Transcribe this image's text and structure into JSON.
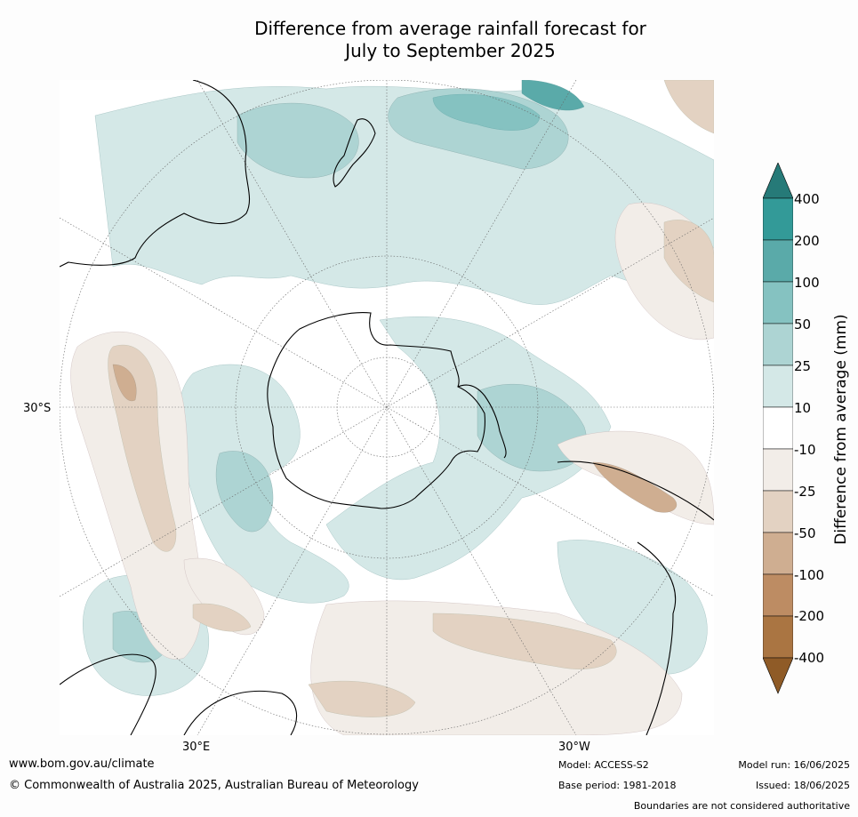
{
  "title": {
    "line1": "Difference from average rainfall forecast for",
    "line2": "July to September 2025"
  },
  "map": {
    "projection": "south-polar-stereographic",
    "latitude_label": "30°S",
    "longitude_labels": [
      "30°E",
      "30°W"
    ]
  },
  "colorbar": {
    "title": "Difference from average (mm)",
    "ticks": [
      "400",
      "200",
      "100",
      "50",
      "25",
      "10",
      "-10",
      "-25",
      "-50",
      "-100",
      "-200",
      "-400"
    ],
    "colors": {
      "over": "#267a78",
      "band_200_400": "#339a98",
      "band_100_200": "#5aaaa9",
      "band_50_100": "#85c2c1",
      "band_25_50": "#add4d3",
      "band_10_25": "#d4e8e7",
      "band_-10_10": "#ffffff",
      "band_-25_-10": "#f2ede8",
      "band_-50_-25": "#e3d2c2",
      "band_-100_-50": "#cfae91",
      "band_-200_-100": "#bd8c63",
      "band_-400_-200": "#aa7542",
      "under": "#8f5b27"
    }
  },
  "footer": {
    "url": "www.bom.gov.au/climate",
    "copyright": "© Commonwealth of Australia 2025, Australian Bureau of Meteorology",
    "model": "Model: ACCESS-S2",
    "base_period": "Base period: 1981-2018",
    "model_run": "Model run: 16/06/2025",
    "issued": "Issued: 18/06/2025",
    "disclaimer": "Boundaries are not considered authoritative"
  }
}
